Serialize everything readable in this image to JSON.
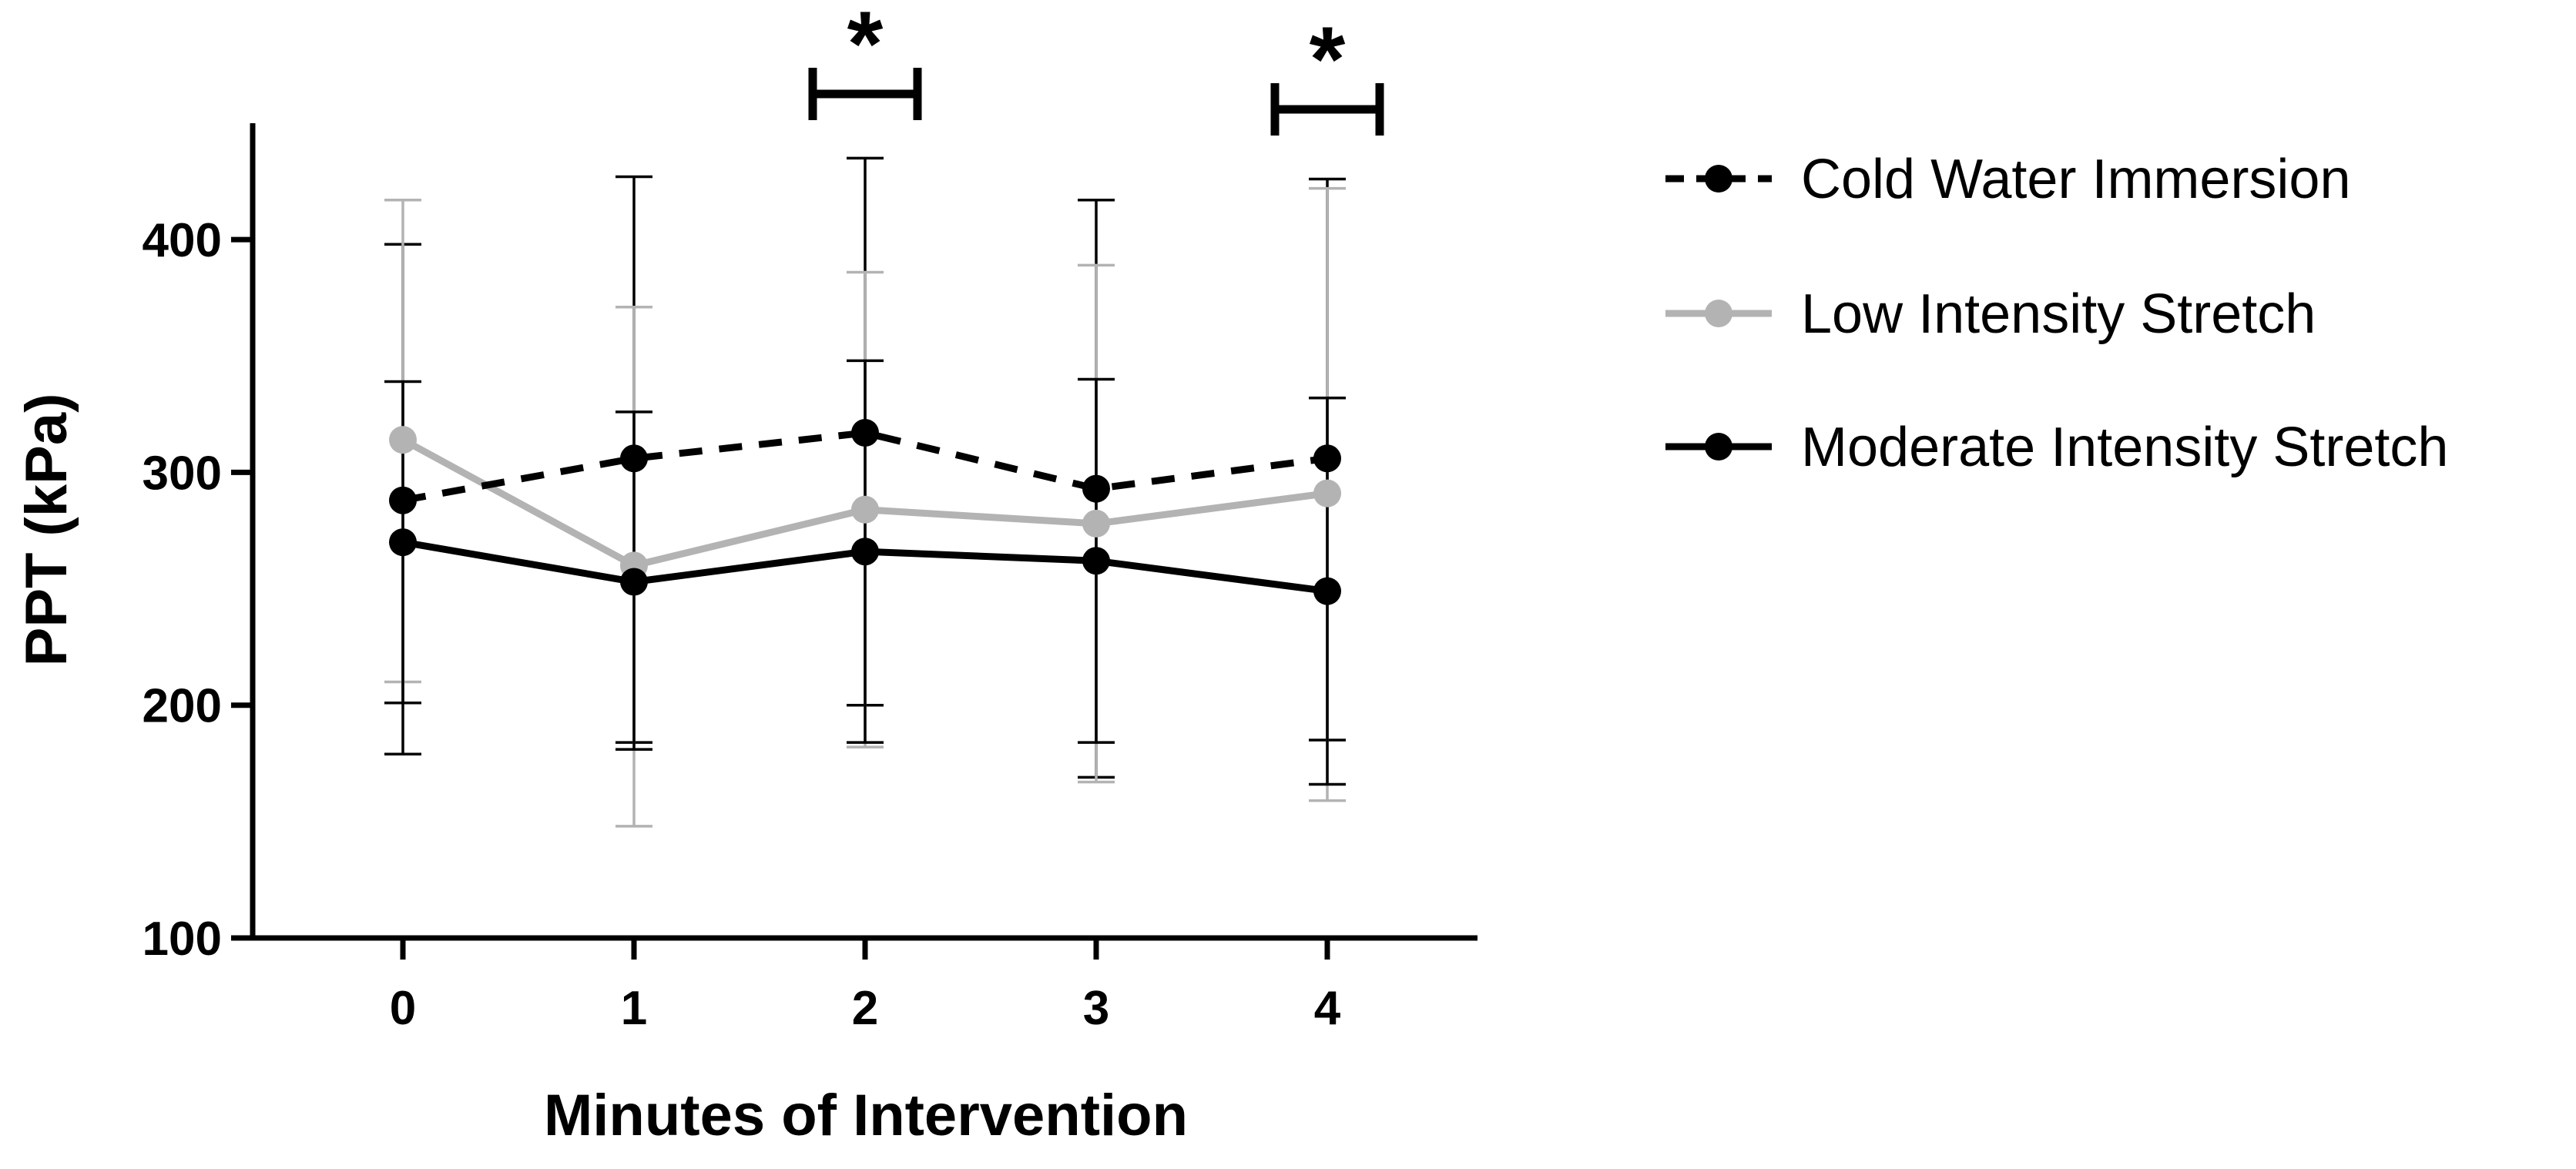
{
  "chart_data": {
    "type": "line",
    "title": "",
    "xlabel": "Minutes of Intervention",
    "ylabel": "PPT (kPa)",
    "categories": [
      "0",
      "1",
      "2",
      "3",
      "4"
    ],
    "x": [
      0,
      1,
      2,
      3,
      4
    ],
    "xlim": [
      -0.65,
      4.65
    ],
    "ylim": [
      100,
      450
    ],
    "yticks": [
      100,
      200,
      300,
      400
    ],
    "ytick_labels": [
      "100",
      "200",
      "300",
      "400"
    ],
    "grid": false,
    "legend_position": "right",
    "series": [
      {
        "name": "Cold Water Immersion",
        "color": "#000000",
        "line_style": "dashed",
        "marker": "circle",
        "values": [
          288,
          306,
          317,
          293,
          306
        ],
        "error_upper": [
          398,
          427,
          435,
          417,
          426
        ],
        "error_lower": [
          179,
          184,
          200,
          169,
          185
        ]
      },
      {
        "name": "Low Intensity Stretch",
        "color": "#b3b3b3",
        "line_style": "solid",
        "marker": "circle",
        "values": [
          314,
          260,
          284,
          278,
          291
        ],
        "error_upper": [
          417,
          371,
          386,
          389,
          422
        ],
        "error_lower": [
          210,
          148,
          182,
          167,
          159
        ]
      },
      {
        "name": "Moderate Intensity Stretch",
        "color": "#000000",
        "line_style": "solid",
        "marker": "circle",
        "values": [
          270,
          253,
          266,
          262,
          249
        ],
        "error_upper": [
          339,
          326,
          348,
          340,
          332
        ],
        "error_lower": [
          201,
          181,
          184,
          184,
          166
        ]
      }
    ],
    "significance": [
      {
        "x": 2,
        "label": "*"
      },
      {
        "x": 4,
        "label": "*"
      }
    ]
  }
}
